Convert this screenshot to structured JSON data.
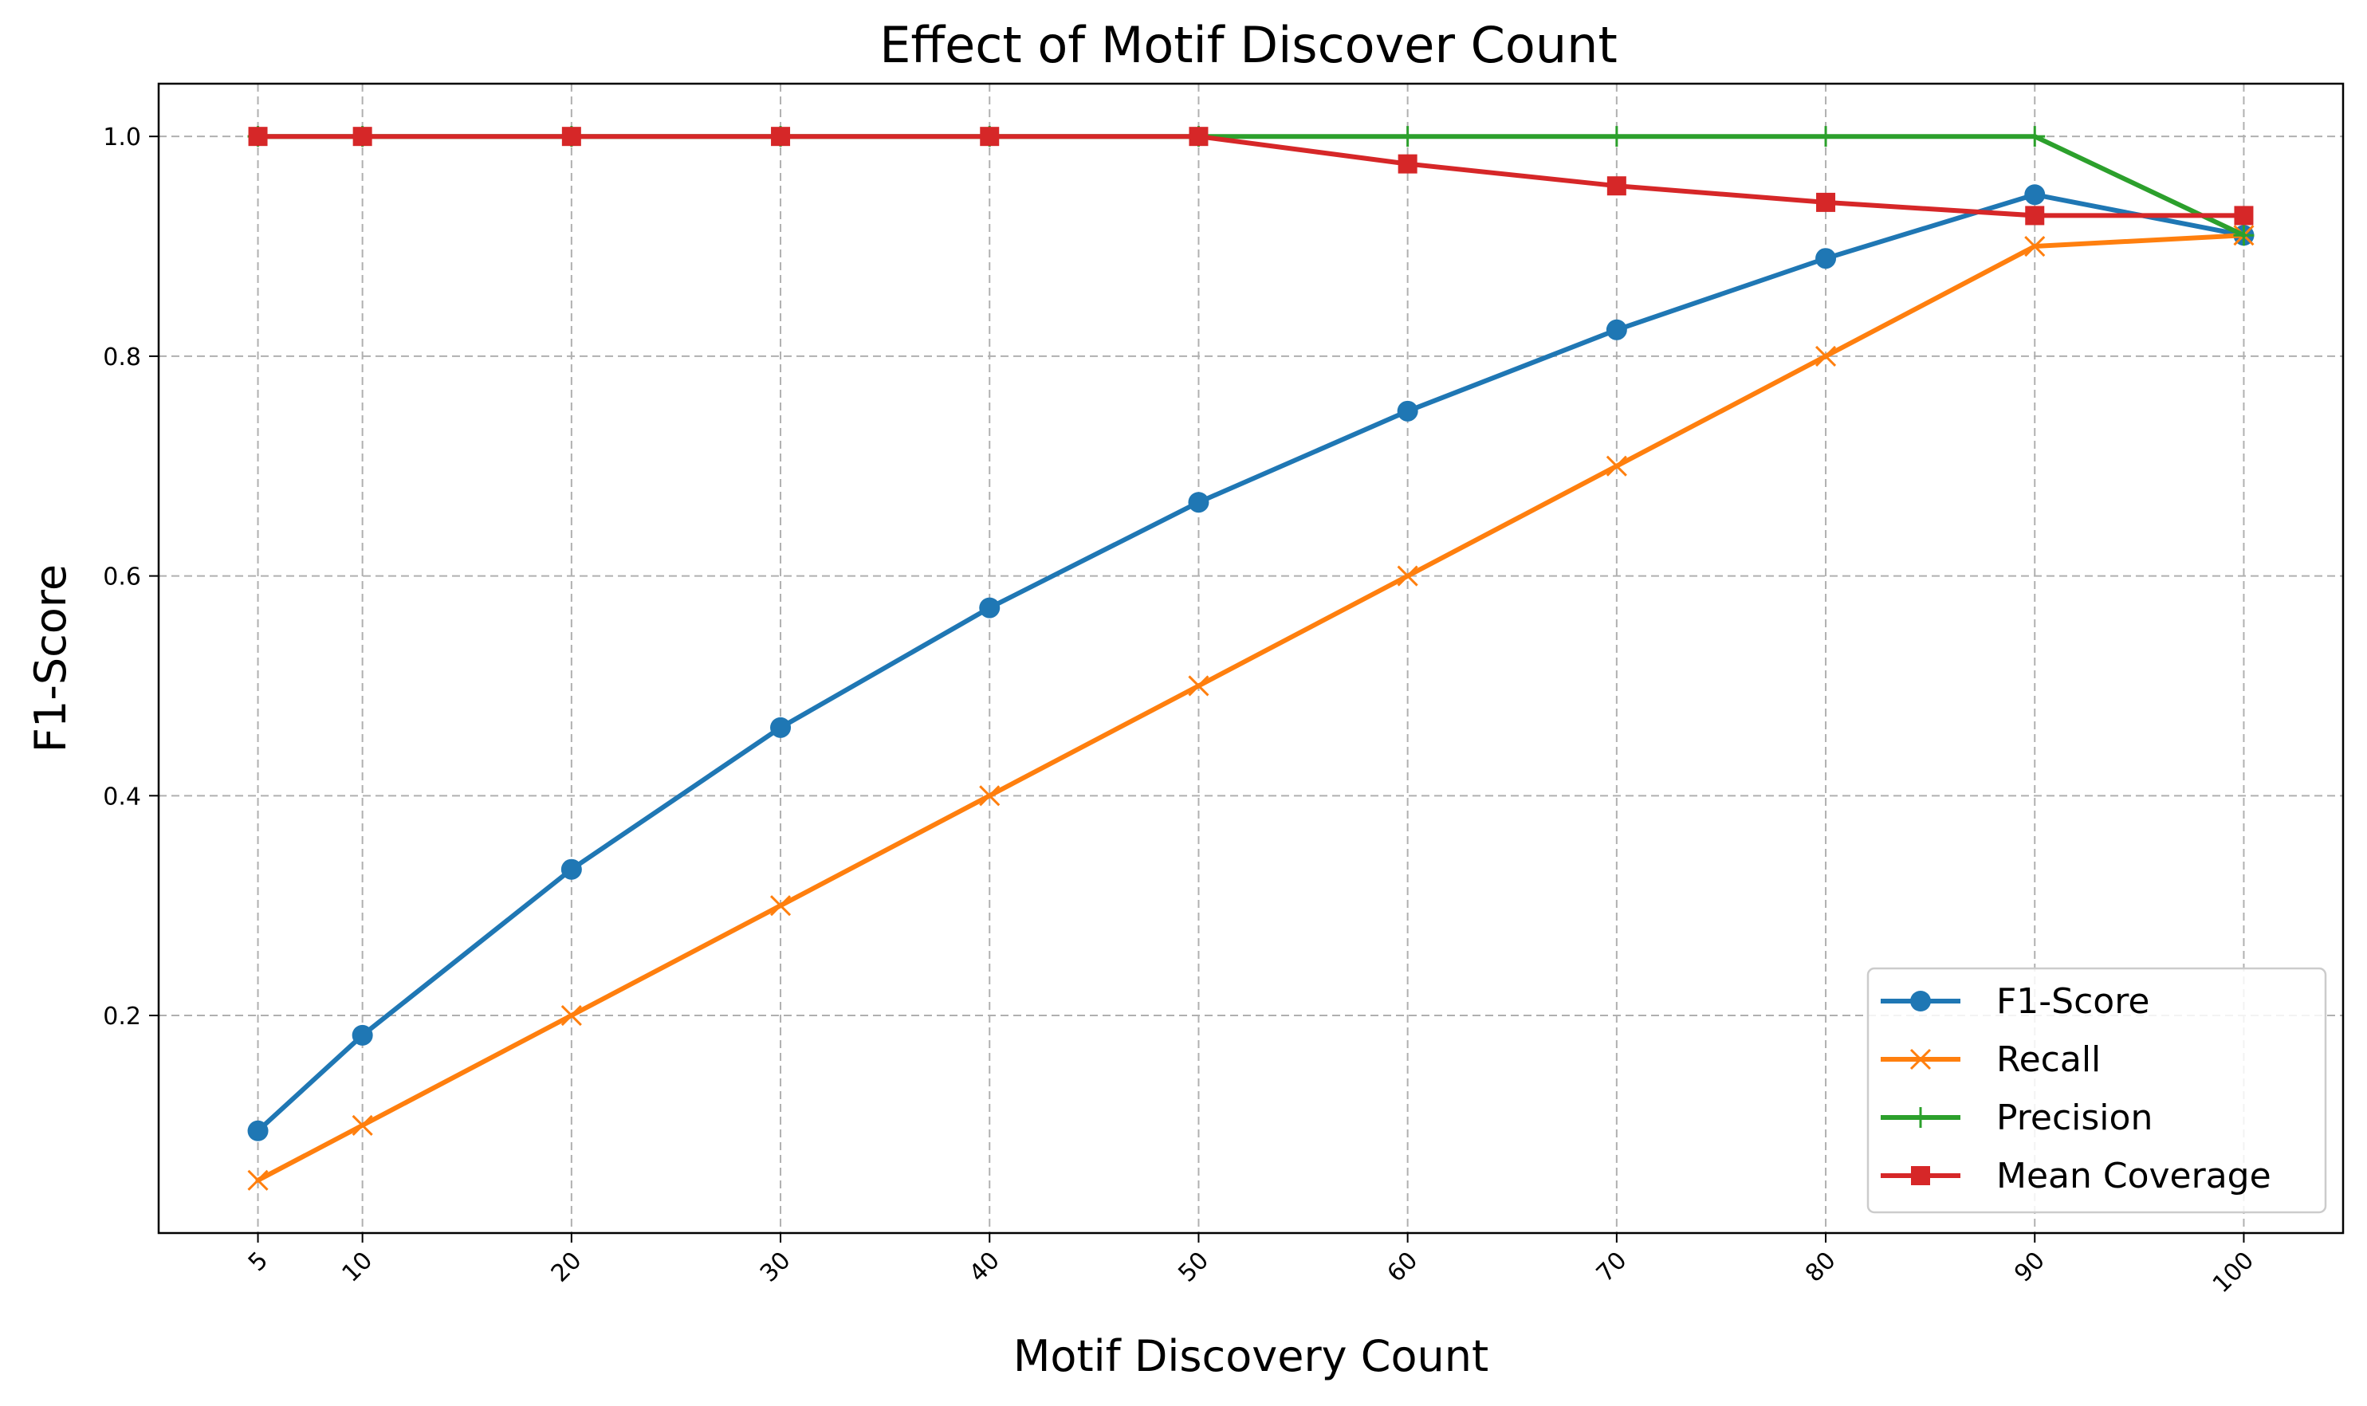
{
  "chart_data": {
    "type": "line",
    "title": "Effect of Motif Discover Count",
    "xlabel": "Motif Discovery Count",
    "ylabel": "F1-Score",
    "x": [
      5,
      10,
      20,
      30,
      40,
      50,
      60,
      70,
      80,
      90,
      100
    ],
    "xticks": [
      "5",
      "10",
      "20",
      "30",
      "40",
      "50",
      "60",
      "70",
      "80",
      "90",
      "100"
    ],
    "yticks": [
      "0.2",
      "0.4",
      "0.6",
      "0.8",
      "1.0"
    ],
    "ytick_values": [
      0.2,
      0.4,
      0.6,
      0.8,
      1.0
    ],
    "xlim": [
      0.25,
      104.75
    ],
    "ylim": [
      0.002,
      1.048
    ],
    "grid": true,
    "legend_position": "bottom-right",
    "series": [
      {
        "name": "F1-Score",
        "color": "#1f77b4",
        "marker": "circle",
        "values": [
          0.095,
          0.182,
          0.333,
          0.462,
          0.571,
          0.667,
          0.75,
          0.824,
          0.889,
          0.947,
          0.91
        ]
      },
      {
        "name": "Recall",
        "color": "#ff7f0e",
        "marker": "x",
        "values": [
          0.05,
          0.1,
          0.2,
          0.3,
          0.4,
          0.5,
          0.6,
          0.7,
          0.8,
          0.9,
          0.91
        ]
      },
      {
        "name": "Precision",
        "color": "#2ca02c",
        "marker": "plus",
        "values": [
          1.0,
          1.0,
          1.0,
          1.0,
          1.0,
          1.0,
          1.0,
          1.0,
          1.0,
          1.0,
          0.91
        ]
      },
      {
        "name": "Mean Coverage",
        "color": "#d62728",
        "marker": "square",
        "values": [
          1.0,
          1.0,
          1.0,
          1.0,
          1.0,
          1.0,
          0.975,
          0.955,
          0.94,
          0.928,
          0.928
        ]
      }
    ]
  }
}
